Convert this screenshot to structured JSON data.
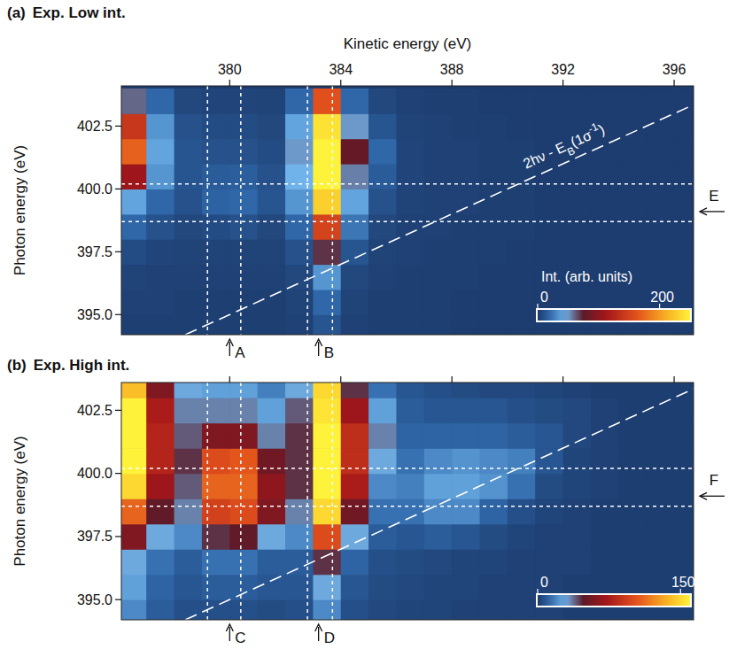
{
  "chart_data": [
    {
      "type": "heatmap",
      "panel": "(a)",
      "title": "Exp. Low int.",
      "xlabel": "Kinetic energy (eV)",
      "ylabel": "Photon energy (eV)",
      "x": [
        376.5,
        377.5,
        378.5,
        379.5,
        380.5,
        381.5,
        382.5,
        383.5,
        384.5,
        385.5,
        386.5,
        387.5,
        388.5,
        389.5,
        390.5,
        391.5,
        392.5,
        393.5,
        394.5,
        395.5,
        396.5
      ],
      "y": [
        394.5,
        395.5,
        396.5,
        397.5,
        398.5,
        399.5,
        400.5,
        401.5,
        402.5,
        403.5
      ],
      "values": [
        [
          2,
          2,
          2,
          2,
          2,
          2,
          3,
          12,
          3,
          2,
          2,
          2,
          1,
          1,
          1,
          1,
          1,
          1,
          1,
          1,
          1
        ],
        [
          3,
          3,
          2,
          2,
          2,
          2,
          4,
          20,
          4,
          2,
          2,
          2,
          1,
          1,
          1,
          1,
          1,
          1,
          1,
          1,
          1
        ],
        [
          4,
          3,
          3,
          3,
          3,
          3,
          6,
          35,
          6,
          3,
          2,
          2,
          2,
          1,
          1,
          1,
          1,
          1,
          1,
          1,
          1
        ],
        [
          8,
          5,
          4,
          4,
          4,
          4,
          10,
          70,
          12,
          4,
          3,
          2,
          2,
          2,
          1,
          1,
          1,
          1,
          1,
          1,
          1
        ],
        [
          20,
          10,
          6,
          8,
          10,
          6,
          20,
          150,
          25,
          6,
          3,
          3,
          2,
          2,
          2,
          1,
          1,
          1,
          1,
          1,
          1
        ],
        [
          40,
          20,
          10,
          18,
          20,
          12,
          35,
          230,
          40,
          10,
          4,
          3,
          3,
          2,
          2,
          1,
          1,
          1,
          1,
          1,
          1
        ],
        [
          110,
          35,
          12,
          15,
          16,
          10,
          45,
          250,
          55,
          15,
          5,
          3,
          3,
          2,
          2,
          1,
          1,
          1,
          1,
          1,
          1
        ],
        [
          170,
          40,
          12,
          10,
          10,
          8,
          50,
          250,
          80,
          20,
          5,
          3,
          3,
          2,
          2,
          1,
          1,
          1,
          1,
          1,
          1
        ],
        [
          140,
          35,
          10,
          8,
          8,
          6,
          40,
          240,
          50,
          12,
          4,
          3,
          2,
          2,
          1,
          1,
          1,
          1,
          1,
          1,
          1
        ],
        [
          60,
          20,
          6,
          5,
          5,
          4,
          20,
          160,
          20,
          6,
          3,
          2,
          2,
          1,
          1,
          1,
          1,
          1,
          1,
          1,
          1
        ]
      ],
      "xlim": [
        376.1,
        396.7
      ],
      "ylim": [
        394.2,
        404.1
      ],
      "xticks": [
        380,
        384,
        388,
        392,
        396
      ],
      "yticks": [
        {
          "value": 395,
          "label": "395.0"
        },
        {
          "value": 397.5,
          "label": "397.5"
        },
        {
          "value": 400,
          "label": "400.0"
        },
        {
          "value": 402.5,
          "label": "402.5"
        }
      ],
      "colorbar": {
        "label": "Int. (arb. units)",
        "range": [
          0,
          250
        ],
        "ticks": [
          0,
          200
        ]
      },
      "annotations": {
        "vlines": [
          379.2,
          380.4,
          382.8,
          383.7
        ],
        "hlines": [
          400.2,
          398.7
        ],
        "diagonal": {
          "binding_energy": 410.0,
          "label_parts": [
            {
              "text": "2hν - E"
            },
            {
              "text": "B",
              "style": "sub"
            },
            {
              "text": "(1σ"
            },
            {
              "text": "-1",
              "style": "sup"
            },
            {
              "text": ")"
            }
          ]
        },
        "markers": [
          {
            "label": "A",
            "value": 380.0
          },
          {
            "label": "B",
            "value": 383.2
          }
        ],
        "side_marker": {
          "label": "E",
          "value": 399.1
        }
      }
    },
    {
      "type": "heatmap",
      "panel": "(b)",
      "title": "Exp. High int.",
      "ylabel": "Photon energy (eV)",
      "tick_labels": "y",
      "x": [
        376.5,
        377.5,
        378.5,
        379.5,
        380.5,
        381.5,
        382.5,
        383.5,
        384.5,
        385.5,
        386.5,
        387.5,
        388.5,
        389.5,
        390.5,
        391.5,
        392.5,
        393.5,
        394.5,
        395.5,
        396.5
      ],
      "y": [
        394.5,
        395.5,
        396.5,
        397.5,
        398.5,
        399.5,
        400.5,
        401.5,
        402.5,
        403.5
      ],
      "values": [
        [
          20,
          10,
          6,
          6,
          6,
          5,
          6,
          20,
          6,
          4,
          3,
          3,
          2,
          2,
          2,
          2,
          1,
          1,
          1,
          1,
          1
        ],
        [
          25,
          12,
          8,
          10,
          10,
          8,
          8,
          30,
          8,
          5,
          4,
          3,
          3,
          2,
          2,
          2,
          1,
          1,
          1,
          1,
          1
        ],
        [
          30,
          15,
          10,
          15,
          15,
          10,
          10,
          45,
          12,
          6,
          5,
          4,
          3,
          3,
          2,
          2,
          2,
          1,
          1,
          1,
          1
        ],
        [
          60,
          30,
          20,
          45,
          50,
          30,
          20,
          100,
          30,
          10,
          8,
          10,
          8,
          5,
          3,
          2,
          2,
          1,
          1,
          1,
          1
        ],
        [
          110,
          50,
          35,
          95,
          100,
          60,
          35,
          150,
          55,
          15,
          15,
          20,
          20,
          12,
          6,
          3,
          2,
          1,
          1,
          1,
          1
        ],
        [
          150,
          70,
          40,
          110,
          110,
          65,
          45,
          160,
          75,
          20,
          18,
          25,
          25,
          22,
          15,
          5,
          3,
          2,
          1,
          1,
          1
        ],
        [
          160,
          80,
          45,
          100,
          105,
          55,
          45,
          160,
          85,
          30,
          15,
          20,
          22,
          20,
          18,
          8,
          3,
          2,
          1,
          1,
          1
        ],
        [
          160,
          80,
          40,
          60,
          60,
          35,
          45,
          160,
          85,
          35,
          12,
          12,
          12,
          12,
          10,
          8,
          4,
          2,
          1,
          1,
          1
        ],
        [
          160,
          75,
          35,
          35,
          35,
          25,
          40,
          155,
          70,
          25,
          10,
          8,
          8,
          8,
          6,
          5,
          4,
          2,
          1,
          1,
          1
        ],
        [
          140,
          60,
          30,
          25,
          25,
          18,
          30,
          150,
          45,
          15,
          8,
          6,
          5,
          4,
          4,
          3,
          2,
          1,
          1,
          1,
          1
        ]
      ],
      "xlim": [
        376.1,
        396.7
      ],
      "ylim": [
        394.2,
        403.6
      ],
      "xticks": [
        380,
        384,
        388,
        392,
        396
      ],
      "yticks": [
        {
          "value": 395,
          "label": "395.0"
        },
        {
          "value": 397.5,
          "label": "397.5"
        },
        {
          "value": 400,
          "label": "400.0"
        },
        {
          "value": 402.5,
          "label": "402.5"
        }
      ],
      "colorbar": {
        "range": [
          0,
          160
        ],
        "ticks": [
          0,
          150
        ]
      },
      "annotations": {
        "vlines": [
          379.2,
          380.4,
          382.8,
          383.7
        ],
        "hlines": [
          400.2,
          398.7
        ],
        "diagonal": {
          "binding_energy": 410.0
        },
        "markers": [
          {
            "label": "C",
            "value": 380.0
          },
          {
            "label": "D",
            "value": 383.2
          }
        ],
        "side_marker": {
          "label": "F",
          "value": 399.1
        }
      }
    }
  ]
}
